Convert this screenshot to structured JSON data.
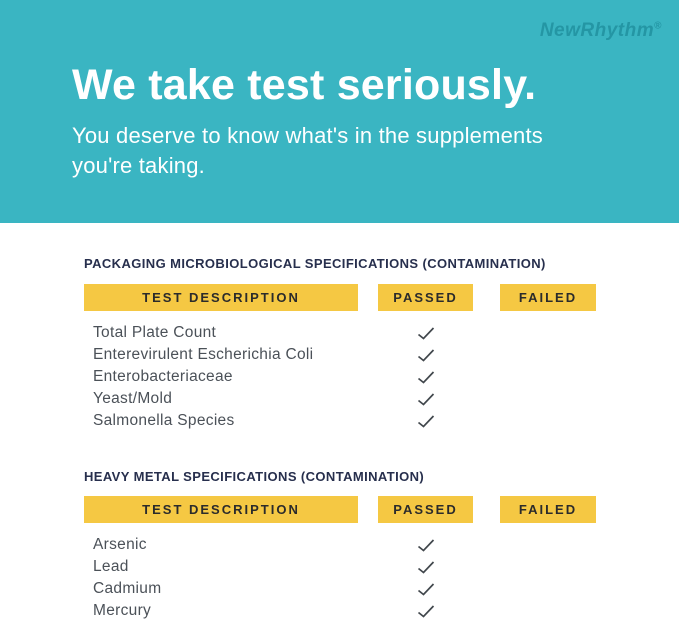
{
  "hero": {
    "logo": "NewRhythm",
    "logo_reg": "®",
    "title": "We take test seriously.",
    "subtitle": "You deserve to know what's in the supplements you're taking."
  },
  "colors": {
    "hero_teal": "#3ab5c2",
    "logo_teal": "#2496a4",
    "header_yellow": "#f5c843",
    "heading_navy": "#272f4d",
    "row_text": "#4b5158",
    "check": "#41474c"
  },
  "sections": [
    {
      "heading": "PACKAGING MICROBIOLOGICAL SPECIFICATIONS (CONTAMINATION)",
      "columns": [
        "TEST DESCRIPTION",
        "PASSED",
        "FAILED"
      ],
      "rows": [
        {
          "label": "Total Plate Count",
          "passed": true,
          "failed": false
        },
        {
          "label": "Enterevirulent Escherichia Coli",
          "passed": true,
          "failed": false
        },
        {
          "label": "Enterobacteriaceae",
          "passed": true,
          "failed": false
        },
        {
          "label": "Yeast/Mold",
          "passed": true,
          "failed": false
        },
        {
          "label": "Salmonella Species",
          "passed": true,
          "failed": false
        }
      ]
    },
    {
      "heading": "HEAVY METAL SPECIFICATIONS (CONTAMINATION)",
      "columns": [
        "TEST DESCRIPTION",
        "PASSED",
        "FAILED"
      ],
      "rows": [
        {
          "label": "Arsenic",
          "passed": true,
          "failed": false
        },
        {
          "label": "Lead",
          "passed": true,
          "failed": false
        },
        {
          "label": "Cadmium",
          "passed": true,
          "failed": false
        },
        {
          "label": "Mercury",
          "passed": true,
          "failed": false
        }
      ]
    }
  ]
}
